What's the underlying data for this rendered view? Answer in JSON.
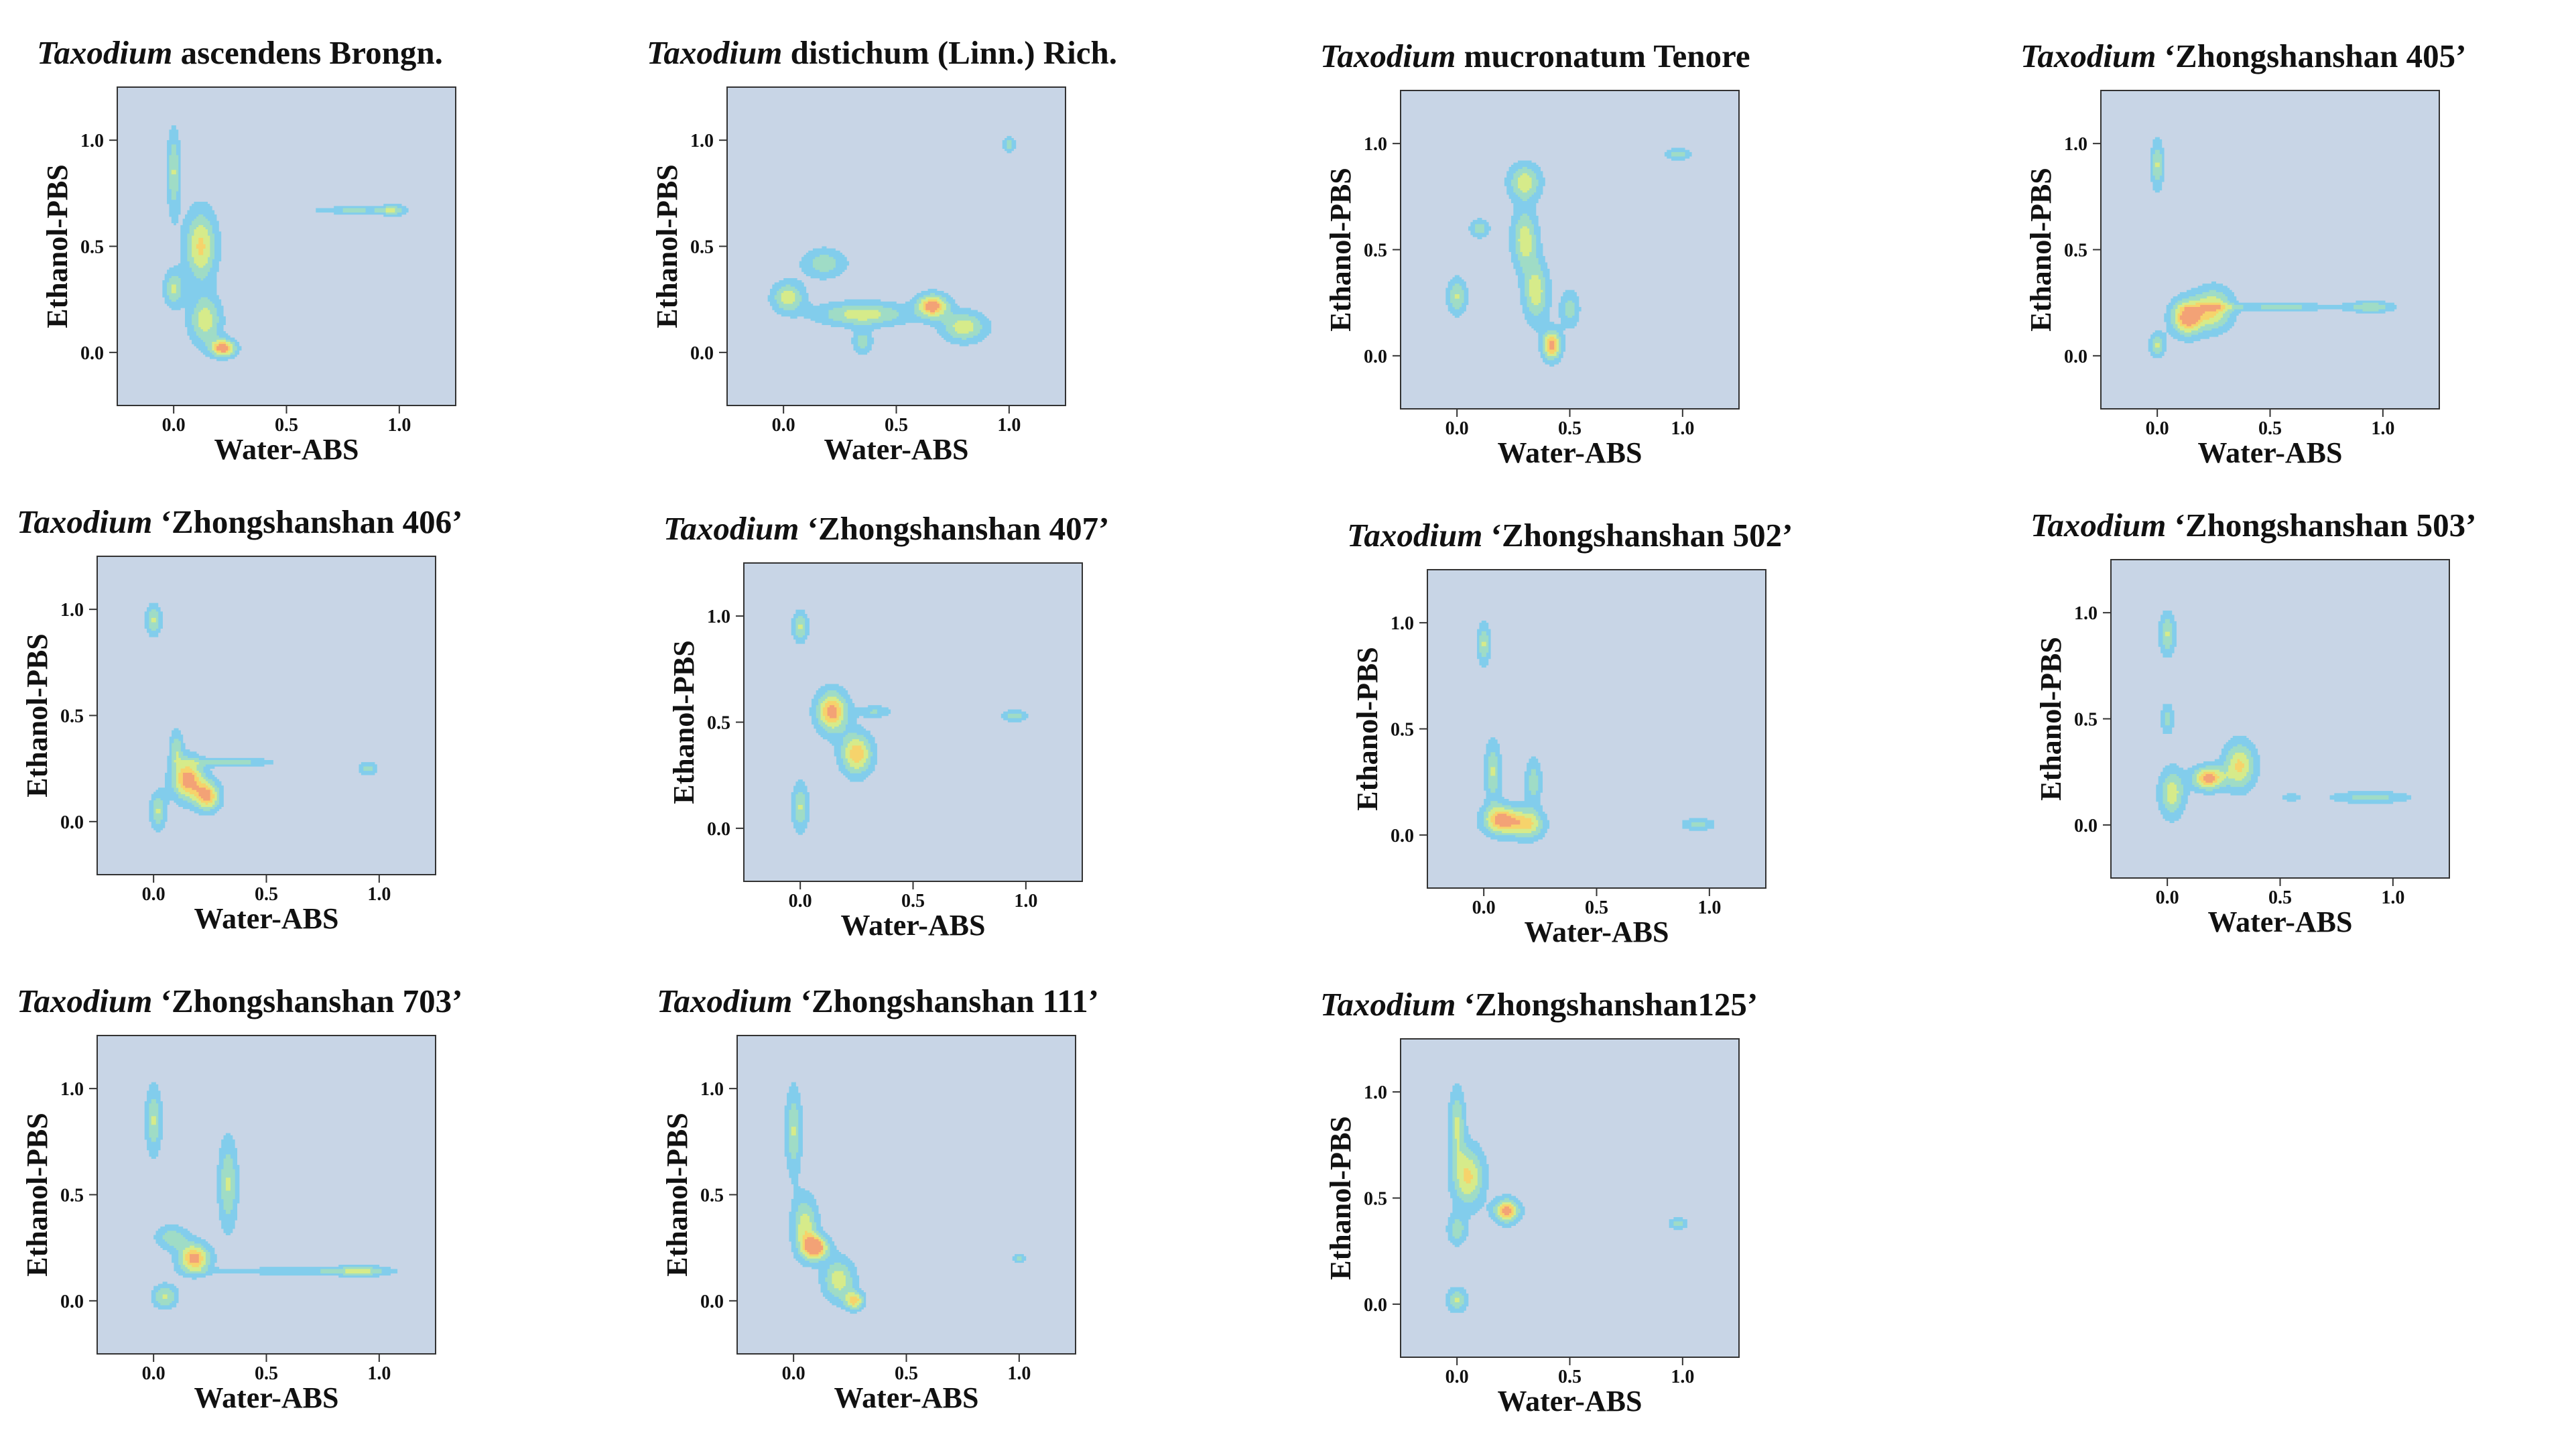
{
  "figure": {
    "panel_axes": {
      "xlabel": "Water-ABS",
      "ylabel": "Ethanol-PBS",
      "x_ticks": [
        "0.0",
        "0.5",
        "1.0"
      ],
      "y_ticks": [
        "0.0",
        "0.5",
        "1.0"
      ]
    },
    "colors": {
      "background": "#c8d5e6",
      "level1": "#82cdec",
      "level2": "#9fdcc6",
      "level3": "#d6eb8a",
      "level4": "#f6d36b",
      "peak": "#f3a276"
    }
  },
  "chart_data": [
    {
      "type": "contour",
      "genus": "Taxodium",
      "title_rest": "ascendens Brongn.",
      "xlabel": "Water-ABS",
      "ylabel": "Ethanol-PBS",
      "xlim": [
        -0.25,
        1.25
      ],
      "ylim": [
        -0.25,
        1.25
      ],
      "x_ticks": [
        0.0,
        0.5,
        1.0
      ],
      "y_ticks": [
        0.0,
        0.5,
        1.0
      ],
      "density_peaks": [
        {
          "x": 0.0,
          "y": 0.85,
          "sx": 0.02,
          "sy": 0.14,
          "w": 0.6
        },
        {
          "x": 0.12,
          "y": 0.5,
          "sx": 0.05,
          "sy": 0.12,
          "w": 0.8
        },
        {
          "x": 0.0,
          "y": 0.3,
          "sx": 0.03,
          "sy": 0.06,
          "w": 0.6
        },
        {
          "x": 0.14,
          "y": 0.15,
          "sx": 0.05,
          "sy": 0.08,
          "w": 0.7
        },
        {
          "x": 0.22,
          "y": 0.02,
          "sx": 0.04,
          "sy": 0.03,
          "w": 1.0
        },
        {
          "x": 0.8,
          "y": 0.67,
          "sx": 0.12,
          "sy": 0.012,
          "w": 0.45
        },
        {
          "x": 0.97,
          "y": 0.67,
          "sx": 0.04,
          "sy": 0.02,
          "w": 0.5
        }
      ]
    },
    {
      "type": "contour",
      "genus": "Taxodium",
      "title_rest": "distichum (Linn.) Rich.",
      "xlabel": "Water-ABS",
      "ylabel": "Ethanol-PBS",
      "xlim": [
        -0.25,
        1.25
      ],
      "ylim": [
        -0.25,
        1.25
      ],
      "x_ticks": [
        0.0,
        0.5,
        1.0
      ],
      "y_ticks": [
        0.0,
        0.5,
        1.0
      ],
      "density_peaks": [
        {
          "x": 0.02,
          "y": 0.26,
          "sx": 0.05,
          "sy": 0.05,
          "w": 0.7
        },
        {
          "x": 0.18,
          "y": 0.42,
          "sx": 0.07,
          "sy": 0.05,
          "w": 0.5
        },
        {
          "x": 0.35,
          "y": 0.18,
          "sx": 0.14,
          "sy": 0.04,
          "w": 0.7
        },
        {
          "x": 0.66,
          "y": 0.22,
          "sx": 0.05,
          "sy": 0.04,
          "w": 1.0
        },
        {
          "x": 0.8,
          "y": 0.12,
          "sx": 0.07,
          "sy": 0.05,
          "w": 0.7
        },
        {
          "x": 0.35,
          "y": 0.05,
          "sx": 0.03,
          "sy": 0.04,
          "w": 0.5
        },
        {
          "x": 1.0,
          "y": 0.98,
          "sx": 0.02,
          "sy": 0.025,
          "w": 0.5
        }
      ]
    },
    {
      "type": "contour",
      "genus": "Taxodium",
      "title_rest": "mucronatum Tenore",
      "xlabel": "Water-ABS",
      "ylabel": "Ethanol-PBS",
      "xlim": [
        -0.25,
        1.25
      ],
      "ylim": [
        -0.25,
        1.25
      ],
      "x_ticks": [
        0.0,
        0.5,
        1.0
      ],
      "y_ticks": [
        0.0,
        0.5,
        1.0
      ],
      "density_peaks": [
        {
          "x": 0.0,
          "y": 0.28,
          "sx": 0.03,
          "sy": 0.06,
          "w": 0.6
        },
        {
          "x": 0.3,
          "y": 0.82,
          "sx": 0.05,
          "sy": 0.06,
          "w": 0.7
        },
        {
          "x": 0.3,
          "y": 0.55,
          "sx": 0.04,
          "sy": 0.1,
          "w": 0.7
        },
        {
          "x": 0.35,
          "y": 0.3,
          "sx": 0.04,
          "sy": 0.1,
          "w": 0.7
        },
        {
          "x": 0.42,
          "y": 0.05,
          "sx": 0.03,
          "sy": 0.05,
          "w": 1.0
        },
        {
          "x": 0.5,
          "y": 0.22,
          "sx": 0.03,
          "sy": 0.06,
          "w": 0.5
        },
        {
          "x": 0.1,
          "y": 0.6,
          "sx": 0.03,
          "sy": 0.03,
          "w": 0.5
        },
        {
          "x": 0.98,
          "y": 0.95,
          "sx": 0.04,
          "sy": 0.02,
          "w": 0.5
        }
      ]
    },
    {
      "type": "contour",
      "genus": "Taxodium",
      "title_rest": "‘Zhongshanshan 405’",
      "xlabel": "Water-ABS",
      "ylabel": "Ethanol-PBS",
      "xlim": [
        -0.25,
        1.25
      ],
      "ylim": [
        -0.25,
        1.25
      ],
      "x_ticks": [
        0.0,
        0.5,
        1.0
      ],
      "y_ticks": [
        0.0,
        0.5,
        1.0
      ],
      "density_peaks": [
        {
          "x": 0.0,
          "y": 0.9,
          "sx": 0.02,
          "sy": 0.08,
          "w": 0.6
        },
        {
          "x": 0.0,
          "y": 0.05,
          "sx": 0.025,
          "sy": 0.04,
          "w": 0.6
        },
        {
          "x": 0.13,
          "y": 0.18,
          "sx": 0.05,
          "sy": 0.06,
          "w": 1.0
        },
        {
          "x": 0.25,
          "y": 0.22,
          "sx": 0.06,
          "sy": 0.07,
          "w": 0.8
        },
        {
          "x": 0.55,
          "y": 0.23,
          "sx": 0.22,
          "sy": 0.012,
          "w": 0.45
        },
        {
          "x": 0.95,
          "y": 0.23,
          "sx": 0.07,
          "sy": 0.02,
          "w": 0.5
        }
      ]
    },
    {
      "type": "contour",
      "genus": "Taxodium",
      "title_rest": "‘Zhongshanshan 406’",
      "xlabel": "Water-ABS",
      "ylabel": "Ethanol-PBS",
      "xlim": [
        -0.25,
        1.25
      ],
      "ylim": [
        -0.25,
        1.25
      ],
      "x_ticks": [
        0.0,
        0.5,
        1.0
      ],
      "y_ticks": [
        0.0,
        0.5,
        1.0
      ],
      "density_peaks": [
        {
          "x": 0.0,
          "y": 0.95,
          "sx": 0.025,
          "sy": 0.05,
          "w": 0.6
        },
        {
          "x": 0.1,
          "y": 0.35,
          "sx": 0.02,
          "sy": 0.06,
          "w": 0.5
        },
        {
          "x": 0.02,
          "y": 0.05,
          "sx": 0.025,
          "sy": 0.06,
          "w": 0.6
        },
        {
          "x": 0.15,
          "y": 0.2,
          "sx": 0.05,
          "sy": 0.07,
          "w": 1.0
        },
        {
          "x": 0.24,
          "y": 0.12,
          "sx": 0.04,
          "sy": 0.05,
          "w": 0.9
        },
        {
          "x": 0.35,
          "y": 0.28,
          "sx": 0.12,
          "sy": 0.015,
          "w": 0.5
        },
        {
          "x": 0.95,
          "y": 0.25,
          "sx": 0.03,
          "sy": 0.02,
          "w": 0.5
        }
      ]
    },
    {
      "type": "contour",
      "genus": "Taxodium",
      "title_rest": "‘Zhongshanshan 407’",
      "xlabel": "Water-ABS",
      "ylabel": "Ethanol-PBS",
      "xlim": [
        -0.25,
        1.25
      ],
      "ylim": [
        -0.25,
        1.25
      ],
      "x_ticks": [
        0.0,
        0.5,
        1.0
      ],
      "y_ticks": [
        0.0,
        0.5,
        1.0
      ],
      "density_peaks": [
        {
          "x": 0.0,
          "y": 0.95,
          "sx": 0.025,
          "sy": 0.05,
          "w": 0.6
        },
        {
          "x": 0.0,
          "y": 0.1,
          "sx": 0.025,
          "sy": 0.08,
          "w": 0.6
        },
        {
          "x": 0.14,
          "y": 0.55,
          "sx": 0.05,
          "sy": 0.07,
          "w": 1.0
        },
        {
          "x": 0.25,
          "y": 0.35,
          "sx": 0.05,
          "sy": 0.07,
          "w": 0.9
        },
        {
          "x": 0.33,
          "y": 0.55,
          "sx": 0.05,
          "sy": 0.02,
          "w": 0.4
        },
        {
          "x": 0.95,
          "y": 0.53,
          "sx": 0.04,
          "sy": 0.02,
          "w": 0.5
        }
      ]
    },
    {
      "type": "contour",
      "genus": "Taxodium",
      "title_rest": "‘Zhongshanshan 502’",
      "xlabel": "Water-ABS",
      "ylabel": "Ethanol-PBS",
      "xlim": [
        -0.25,
        1.25
      ],
      "ylim": [
        -0.25,
        1.25
      ],
      "x_ticks": [
        0.0,
        0.5,
        1.0
      ],
      "y_ticks": [
        0.0,
        0.5,
        1.0
      ],
      "density_peaks": [
        {
          "x": 0.0,
          "y": 0.9,
          "sx": 0.02,
          "sy": 0.07,
          "w": 0.6
        },
        {
          "x": 0.04,
          "y": 0.3,
          "sx": 0.025,
          "sy": 0.1,
          "w": 0.6
        },
        {
          "x": 0.08,
          "y": 0.07,
          "sx": 0.06,
          "sy": 0.05,
          "w": 1.0
        },
        {
          "x": 0.2,
          "y": 0.05,
          "sx": 0.05,
          "sy": 0.05,
          "w": 0.7
        },
        {
          "x": 0.22,
          "y": 0.25,
          "sx": 0.025,
          "sy": 0.08,
          "w": 0.5
        },
        {
          "x": 0.95,
          "y": 0.05,
          "sx": 0.05,
          "sy": 0.02,
          "w": 0.5
        }
      ]
    },
    {
      "type": "contour",
      "genus": "Taxodium",
      "title_rest": "‘Zhongshanshan 503’",
      "xlabel": "Water-ABS",
      "ylabel": "Ethanol-PBS",
      "xlim": [
        -0.25,
        1.25
      ],
      "ylim": [
        -0.25,
        1.25
      ],
      "x_ticks": [
        0.0,
        0.5,
        1.0
      ],
      "y_ticks": [
        0.0,
        0.5,
        1.0
      ],
      "density_peaks": [
        {
          "x": 0.0,
          "y": 0.9,
          "sx": 0.025,
          "sy": 0.07,
          "w": 0.6
        },
        {
          "x": 0.0,
          "y": 0.5,
          "sx": 0.02,
          "sy": 0.05,
          "w": 0.5
        },
        {
          "x": 0.02,
          "y": 0.15,
          "sx": 0.04,
          "sy": 0.08,
          "w": 0.7
        },
        {
          "x": 0.18,
          "y": 0.22,
          "sx": 0.05,
          "sy": 0.04,
          "w": 1.0
        },
        {
          "x": 0.32,
          "y": 0.28,
          "sx": 0.05,
          "sy": 0.08,
          "w": 0.8
        },
        {
          "x": 0.55,
          "y": 0.13,
          "sx": 0.03,
          "sy": 0.012,
          "w": 0.4
        },
        {
          "x": 0.9,
          "y": 0.13,
          "sx": 0.12,
          "sy": 0.02,
          "w": 0.5
        }
      ]
    },
    {
      "type": "contour",
      "genus": "Taxodium",
      "title_rest": "‘Zhongshanshan 703’",
      "xlabel": "Water-ABS",
      "ylabel": "Ethanol-PBS",
      "xlim": [
        -0.25,
        1.25
      ],
      "ylim": [
        -0.25,
        1.25
      ],
      "x_ticks": [
        0.0,
        0.5,
        1.0
      ],
      "y_ticks": [
        0.0,
        0.5,
        1.0
      ],
      "density_peaks": [
        {
          "x": 0.0,
          "y": 0.85,
          "sx": 0.025,
          "sy": 0.11,
          "w": 0.6
        },
        {
          "x": 0.05,
          "y": 0.02,
          "sx": 0.04,
          "sy": 0.04,
          "w": 0.6
        },
        {
          "x": 0.18,
          "y": 0.2,
          "sx": 0.05,
          "sy": 0.05,
          "w": 1.0
        },
        {
          "x": 0.08,
          "y": 0.3,
          "sx": 0.05,
          "sy": 0.04,
          "w": 0.5
        },
        {
          "x": 0.33,
          "y": 0.55,
          "sx": 0.03,
          "sy": 0.15,
          "w": 0.6
        },
        {
          "x": 0.6,
          "y": 0.14,
          "sx": 0.25,
          "sy": 0.012,
          "w": 0.4
        },
        {
          "x": 0.92,
          "y": 0.14,
          "sx": 0.09,
          "sy": 0.02,
          "w": 0.5
        }
      ]
    },
    {
      "type": "contour",
      "genus": "Taxodium",
      "title_rest": "‘Zhongshanshan 111’",
      "xlabel": "Water-ABS",
      "ylabel": "Ethanol-PBS",
      "xlim": [
        -0.25,
        1.25
      ],
      "ylim": [
        -0.25,
        1.25
      ],
      "x_ticks": [
        0.0,
        0.5,
        1.0
      ],
      "y_ticks": [
        0.0,
        0.5,
        1.0
      ],
      "density_peaks": [
        {
          "x": 0.0,
          "y": 0.8,
          "sx": 0.025,
          "sy": 0.14,
          "w": 0.6
        },
        {
          "x": 0.05,
          "y": 0.35,
          "sx": 0.04,
          "sy": 0.1,
          "w": 0.7
        },
        {
          "x": 0.1,
          "y": 0.25,
          "sx": 0.04,
          "sy": 0.04,
          "w": 1.0
        },
        {
          "x": 0.2,
          "y": 0.1,
          "sx": 0.05,
          "sy": 0.07,
          "w": 0.7
        },
        {
          "x": 0.27,
          "y": 0.0,
          "sx": 0.03,
          "sy": 0.03,
          "w": 0.8
        },
        {
          "x": 1.0,
          "y": 0.2,
          "sx": 0.02,
          "sy": 0.015,
          "w": 0.45
        }
      ]
    },
    {
      "type": "contour",
      "genus": "Taxodium",
      "title_rest": "‘Zhongshanshan125’",
      "xlabel": "Water-ABS",
      "ylabel": "Ethanol-PBS",
      "xlim": [
        -0.25,
        1.25
      ],
      "ylim": [
        -0.25,
        1.25
      ],
      "x_ticks": [
        0.0,
        0.5,
        1.0
      ],
      "y_ticks": [
        0.0,
        0.5,
        1.0
      ],
      "density_peaks": [
        {
          "x": 0.0,
          "y": 0.85,
          "sx": 0.025,
          "sy": 0.12,
          "w": 0.6
        },
        {
          "x": 0.05,
          "y": 0.6,
          "sx": 0.05,
          "sy": 0.1,
          "w": 0.8
        },
        {
          "x": 0.0,
          "y": 0.35,
          "sx": 0.03,
          "sy": 0.05,
          "w": 0.5
        },
        {
          "x": 0.0,
          "y": 0.02,
          "sx": 0.03,
          "sy": 0.04,
          "w": 0.6
        },
        {
          "x": 0.22,
          "y": 0.44,
          "sx": 0.04,
          "sy": 0.04,
          "w": 1.0
        },
        {
          "x": 0.98,
          "y": 0.38,
          "sx": 0.03,
          "sy": 0.02,
          "w": 0.45
        }
      ]
    }
  ]
}
